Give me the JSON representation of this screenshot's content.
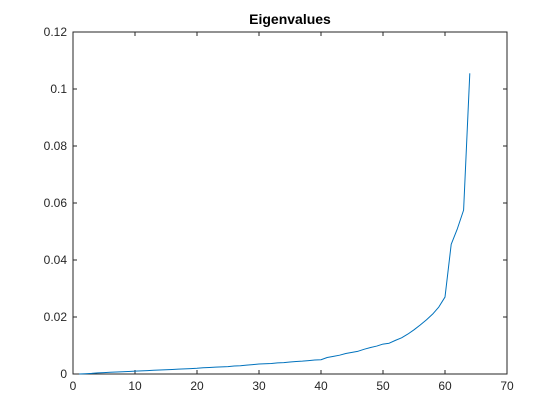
{
  "chart_data": {
    "type": "line",
    "title": "Eigenvalues",
    "xlabel": "",
    "ylabel": "",
    "xlim": [
      0,
      70
    ],
    "ylim": [
      0,
      0.12
    ],
    "x_ticks": [
      0,
      10,
      20,
      30,
      40,
      50,
      60,
      70
    ],
    "y_ticks": [
      0,
      0.02,
      0.04,
      0.06,
      0.08,
      0.1,
      0.12
    ],
    "x_tick_labels": [
      "0",
      "10",
      "20",
      "30",
      "40",
      "50",
      "60",
      "70"
    ],
    "y_tick_labels": [
      "0",
      "0.02",
      "0.04",
      "0.06",
      "0.08",
      "0.1",
      "0.12"
    ],
    "grid": false,
    "series": [
      {
        "color": "#0072BD",
        "x": [
          1,
          2,
          3,
          4,
          5,
          6,
          7,
          8,
          9,
          10,
          11,
          12,
          13,
          14,
          15,
          16,
          17,
          18,
          19,
          20,
          21,
          22,
          23,
          24,
          25,
          26,
          27,
          28,
          29,
          30,
          31,
          32,
          33,
          34,
          35,
          36,
          37,
          38,
          39,
          40,
          41,
          42,
          43,
          44,
          45,
          46,
          47,
          48,
          49,
          50,
          51,
          52,
          53,
          54,
          55,
          56,
          57,
          58,
          59,
          60,
          61,
          62,
          63,
          64
        ],
        "y": [
          0.0,
          0.0001,
          0.0002,
          0.0004,
          0.0005,
          0.0006,
          0.0007,
          0.0008,
          0.0009,
          0.001,
          0.0011,
          0.0012,
          0.0013,
          0.0014,
          0.0015,
          0.0016,
          0.0017,
          0.0018,
          0.0019,
          0.002,
          0.0022,
          0.0023,
          0.0024,
          0.0025,
          0.0026,
          0.0028,
          0.0029,
          0.0031,
          0.0033,
          0.0035,
          0.0036,
          0.0037,
          0.0039,
          0.004,
          0.0042,
          0.0044,
          0.0045,
          0.0047,
          0.0049,
          0.005,
          0.0058,
          0.0062,
          0.0066,
          0.0072,
          0.0076,
          0.008,
          0.0087,
          0.0093,
          0.0098,
          0.0105,
          0.0108,
          0.0118,
          0.0127,
          0.014,
          0.0155,
          0.0172,
          0.019,
          0.021,
          0.0235,
          0.027,
          0.0455,
          0.051,
          0.0575,
          0.1055
        ]
      }
    ]
  }
}
